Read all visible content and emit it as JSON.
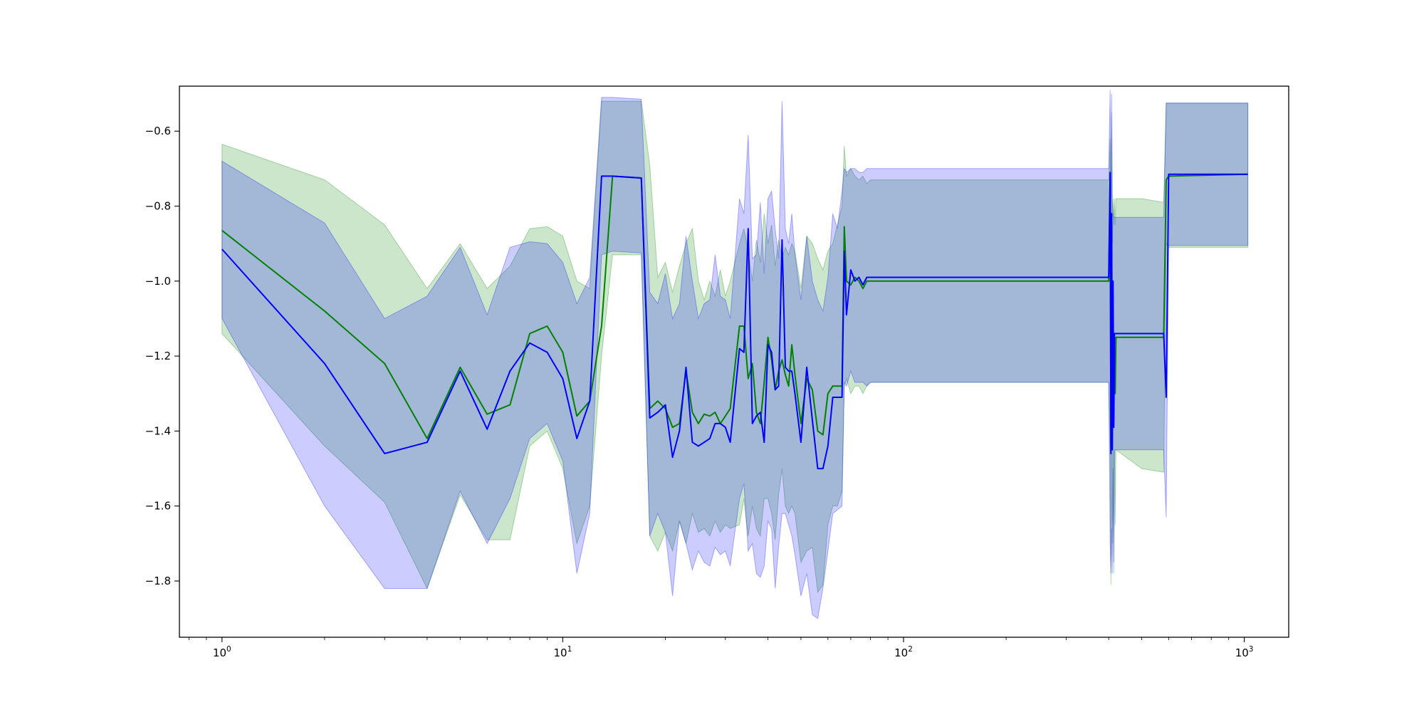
{
  "chart_data": {
    "type": "line",
    "title": "",
    "xlabel": "",
    "ylabel": "",
    "xscale": "log",
    "xlim": [
      0.75,
      1350
    ],
    "ylim": [
      -1.95,
      -0.48
    ],
    "grid": false,
    "legend": "none",
    "x_ticks": [
      {
        "value": 1,
        "base": "10",
        "exp": "0"
      },
      {
        "value": 10,
        "base": "10",
        "exp": "1"
      },
      {
        "value": 100,
        "base": "10",
        "exp": "2"
      },
      {
        "value": 1000,
        "base": "10",
        "exp": "3"
      }
    ],
    "y_ticks": [
      {
        "value": -0.6,
        "label": "−0.6"
      },
      {
        "value": -0.8,
        "label": "−0.8"
      },
      {
        "value": -1.0,
        "label": "−1.0"
      },
      {
        "value": -1.2,
        "label": "−1.2"
      },
      {
        "value": -1.4,
        "label": "−1.4"
      },
      {
        "value": -1.6,
        "label": "−1.6"
      },
      {
        "value": -1.8,
        "label": "−1.8"
      }
    ],
    "series": [
      {
        "color": "#008000",
        "band_color": "#008000",
        "band_opacity": 0.2,
        "x": [
          1,
          2,
          3,
          4,
          5,
          6,
          7,
          8,
          9,
          10,
          11,
          12,
          13,
          14,
          17,
          18,
          19,
          20,
          21,
          22,
          23,
          24,
          25,
          26,
          27,
          28,
          29,
          30,
          31,
          33,
          34,
          35,
          36,
          37,
          38,
          39,
          40,
          41,
          42,
          43,
          44,
          45,
          46,
          47,
          48,
          50,
          52,
          54,
          56,
          58,
          60,
          62,
          64,
          66,
          67,
          68,
          70,
          72,
          74,
          76,
          78,
          80,
          400,
          404,
          406,
          408,
          410,
          412,
          414,
          416,
          418,
          420,
          500,
          580,
          590,
          600,
          1024
        ],
        "y": [
          -0.865,
          -1.08,
          -1.22,
          -1.42,
          -1.23,
          -1.355,
          -1.33,
          -1.14,
          -1.12,
          -1.19,
          -1.36,
          -1.32,
          -1.12,
          -0.72,
          -0.725,
          -1.34,
          -1.32,
          -1.34,
          -1.39,
          -1.38,
          -1.24,
          -1.35,
          -1.38,
          -1.355,
          -1.36,
          -1.35,
          -1.38,
          -1.36,
          -1.34,
          -1.12,
          -1.12,
          -1.26,
          -1.22,
          -1.35,
          -1.38,
          -1.27,
          -1.15,
          -1.21,
          -1.29,
          -1.24,
          -1.21,
          -1.25,
          -1.28,
          -1.17,
          -1.25,
          -1.38,
          -1.26,
          -1.29,
          -1.4,
          -1.41,
          -1.3,
          -1.28,
          -1.28,
          -1.28,
          -0.855,
          -1.0,
          -1.01,
          -0.99,
          -1.0,
          -1.02,
          -1.0,
          -1.0,
          -1.0,
          -0.73,
          -1.44,
          -0.85,
          -1.4,
          -1.1,
          -1.35,
          -1.2,
          -1.3,
          -1.15,
          -1.15,
          -1.15,
          -0.73,
          -0.72,
          -0.715
        ],
        "lower": [
          -1.14,
          -1.44,
          -1.59,
          -1.82,
          -1.57,
          -1.69,
          -1.69,
          -1.44,
          -1.4,
          -1.5,
          -1.7,
          -1.6,
          -1.2,
          -0.93,
          -0.93,
          -1.68,
          -1.72,
          -1.67,
          -1.72,
          -1.64,
          -1.7,
          -1.62,
          -1.67,
          -1.66,
          -1.68,
          -1.64,
          -1.67,
          -1.65,
          -1.66,
          -1.65,
          -1.58,
          -1.68,
          -1.6,
          -1.66,
          -1.68,
          -1.58,
          -1.58,
          -1.62,
          -1.69,
          -1.57,
          -1.5,
          -1.6,
          -1.62,
          -1.6,
          -1.62,
          -1.75,
          -1.72,
          -1.71,
          -1.83,
          -1.81,
          -1.65,
          -1.6,
          -1.6,
          -1.56,
          -1.28,
          -1.26,
          -1.3,
          -1.28,
          -1.28,
          -1.3,
          -1.28,
          -1.27,
          -1.27,
          -1.45,
          -1.81,
          -1.45,
          -1.7,
          -1.45,
          -1.78,
          -1.45,
          -1.65,
          -1.45,
          -1.5,
          -1.51,
          -0.9,
          -0.91,
          -0.91
        ],
        "upper": [
          -0.635,
          -0.73,
          -0.85,
          -1.02,
          -0.9,
          -1.02,
          -0.96,
          -0.86,
          -0.855,
          -0.88,
          -1.0,
          -1.02,
          -0.52,
          -0.52,
          -0.52,
          -0.69,
          -0.99,
          -0.95,
          -1.03,
          -0.96,
          -0.9,
          -0.86,
          -1.0,
          -1.05,
          -1.0,
          -1.04,
          -0.97,
          -1.04,
          -1.0,
          -0.9,
          -0.86,
          -0.92,
          -1.0,
          -0.89,
          -0.95,
          -0.82,
          -0.9,
          -0.85,
          -0.96,
          -0.89,
          -0.94,
          -0.91,
          -0.93,
          -0.9,
          -0.92,
          -1.02,
          -0.88,
          -0.9,
          -0.94,
          -0.97,
          -0.92,
          -0.9,
          -0.85,
          -0.8,
          -0.64,
          -0.72,
          -0.7,
          -0.72,
          -0.73,
          -0.72,
          -0.74,
          -0.73,
          -0.73,
          -0.62,
          -0.88,
          -0.55,
          -0.9,
          -0.78,
          -0.85,
          -0.78,
          -0.85,
          -0.78,
          -0.78,
          -0.79,
          -0.525,
          -0.525,
          -0.525
        ]
      },
      {
        "color": "#0000ff",
        "band_color": "#0000ff",
        "band_opacity": 0.2,
        "x": [
          1,
          2,
          3,
          4,
          5,
          6,
          7,
          8,
          9,
          10,
          11,
          12,
          13,
          14,
          17,
          18,
          19,
          20,
          21,
          22,
          23,
          24,
          25,
          26,
          27,
          28,
          29,
          30,
          31,
          33,
          34,
          35,
          36,
          37,
          38,
          39,
          40,
          41,
          42,
          43,
          44,
          45,
          46,
          47,
          48,
          50,
          52,
          54,
          56,
          58,
          60,
          62,
          64,
          66,
          67,
          68,
          70,
          72,
          74,
          76,
          78,
          80,
          400,
          404,
          406,
          408,
          410,
          412,
          414,
          416,
          418,
          420,
          500,
          580,
          590,
          600,
          1024
        ],
        "y": [
          -0.915,
          -1.22,
          -1.46,
          -1.43,
          -1.24,
          -1.395,
          -1.24,
          -1.165,
          -1.19,
          -1.26,
          -1.42,
          -1.32,
          -0.72,
          -0.72,
          -0.725,
          -1.365,
          -1.35,
          -1.33,
          -1.47,
          -1.4,
          -1.23,
          -1.43,
          -1.44,
          -1.43,
          -1.42,
          -1.38,
          -1.38,
          -1.39,
          -1.43,
          -1.18,
          -1.19,
          -0.86,
          -1.38,
          -1.36,
          -1.35,
          -1.43,
          -1.17,
          -1.19,
          -1.29,
          -1.28,
          -0.89,
          -1.23,
          -1.24,
          -1.24,
          -1.3,
          -1.43,
          -1.23,
          -1.37,
          -1.5,
          -1.5,
          -1.44,
          -1.31,
          -1.31,
          -1.31,
          -0.92,
          -1.09,
          -0.97,
          -1.0,
          -0.99,
          -1.01,
          -0.99,
          -0.99,
          -0.99,
          -0.71,
          -1.46,
          -0.82,
          -1.45,
          -1.0,
          -1.39,
          -1.14,
          -1.14,
          -1.14,
          -1.14,
          -1.14,
          -1.31,
          -0.715,
          -0.715
        ],
        "lower": [
          -1.1,
          -1.6,
          -1.82,
          -1.82,
          -1.56,
          -1.7,
          -1.58,
          -1.42,
          -1.38,
          -1.48,
          -1.78,
          -1.62,
          -0.93,
          -0.92,
          -0.925,
          -1.68,
          -1.62,
          -1.67,
          -1.84,
          -1.64,
          -1.7,
          -1.77,
          -1.72,
          -1.75,
          -1.76,
          -1.71,
          -1.73,
          -1.72,
          -1.76,
          -1.58,
          -1.54,
          -1.72,
          -1.7,
          -1.78,
          -1.79,
          -1.76,
          -1.64,
          -1.66,
          -1.82,
          -1.71,
          -1.62,
          -1.62,
          -1.65,
          -1.68,
          -1.73,
          -1.84,
          -1.78,
          -1.89,
          -1.9,
          -1.82,
          -1.72,
          -1.62,
          -1.61,
          -1.6,
          -1.27,
          -1.28,
          -1.24,
          -1.27,
          -1.27,
          -1.27,
          -1.28,
          -1.27,
          -1.27,
          -1.7,
          -1.78,
          -1.66,
          -1.78,
          -1.5,
          -1.75,
          -1.45,
          -1.45,
          -1.45,
          -1.45,
          -1.45,
          -1.63,
          -0.905,
          -0.905
        ],
        "upper": [
          -0.68,
          -0.845,
          -1.1,
          -1.04,
          -0.91,
          -1.09,
          -0.91,
          -0.895,
          -0.9,
          -0.95,
          -1.06,
          -0.99,
          -0.51,
          -0.51,
          -0.515,
          -1.03,
          -1.06,
          -0.98,
          -1.1,
          -1.06,
          -0.88,
          -1.0,
          -1.1,
          -1.06,
          -1.05,
          -0.93,
          -1.04,
          -1.05,
          -1.1,
          -0.78,
          -0.82,
          -0.61,
          -0.94,
          -0.93,
          -0.79,
          -0.98,
          -0.78,
          -0.76,
          -0.86,
          -0.94,
          -0.52,
          -0.86,
          -0.9,
          -0.82,
          -0.93,
          -1.05,
          -0.88,
          -1.0,
          -1.05,
          -1.08,
          -0.99,
          -0.82,
          -0.86,
          -0.76,
          -0.7,
          -0.71,
          -0.7,
          -0.7,
          -0.71,
          -0.71,
          -0.7,
          -0.7,
          -0.7,
          -0.49,
          -0.78,
          -0.5,
          -0.79,
          -0.82,
          -0.83,
          -0.83,
          -0.83,
          -0.83,
          -0.83,
          -0.83,
          -0.525,
          -0.525,
          -0.525
        ]
      }
    ]
  }
}
